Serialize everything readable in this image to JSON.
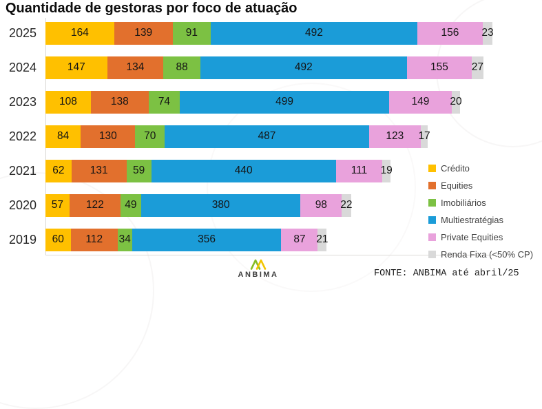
{
  "page": {
    "title": "Quantidade de gestoras por foco de atuação"
  },
  "chart_data": {
    "type": "bar",
    "orientation": "horizontal",
    "stacked": true,
    "title": "Quantidade de gestoras por foco de atuação",
    "categories": [
      "2025",
      "2024",
      "2023",
      "2022",
      "2021",
      "2020",
      "2019"
    ],
    "series": [
      {
        "name": "Crédito",
        "color": "#FFC000",
        "values": [
          164,
          147,
          108,
          84,
          62,
          57,
          60
        ]
      },
      {
        "name": "Equities",
        "color": "#E2702D",
        "values": [
          139,
          134,
          138,
          130,
          131,
          122,
          112
        ]
      },
      {
        "name": "Imobiliários",
        "color": "#7CC143",
        "values": [
          91,
          88,
          74,
          70,
          59,
          49,
          34
        ]
      },
      {
        "name": "Multiestratégias",
        "color": "#1B9CD8",
        "values": [
          492,
          492,
          499,
          487,
          440,
          380,
          356
        ]
      },
      {
        "name": "Private Equities",
        "color": "#E9A2DC",
        "values": [
          156,
          155,
          149,
          123,
          111,
          98,
          87
        ]
      },
      {
        "name": "Renda Fixa (<50% CP)",
        "color": "#D9D9D9",
        "values": [
          23,
          27,
          20,
          17,
          19,
          22,
          21
        ]
      }
    ],
    "legend_position": "right",
    "data_labels": true,
    "grid": false,
    "xlim": [
      0,
      1080
    ]
  },
  "footer": {
    "logo": "ANBIMA",
    "source": "FONTE: ANBIMA até abril/25"
  }
}
